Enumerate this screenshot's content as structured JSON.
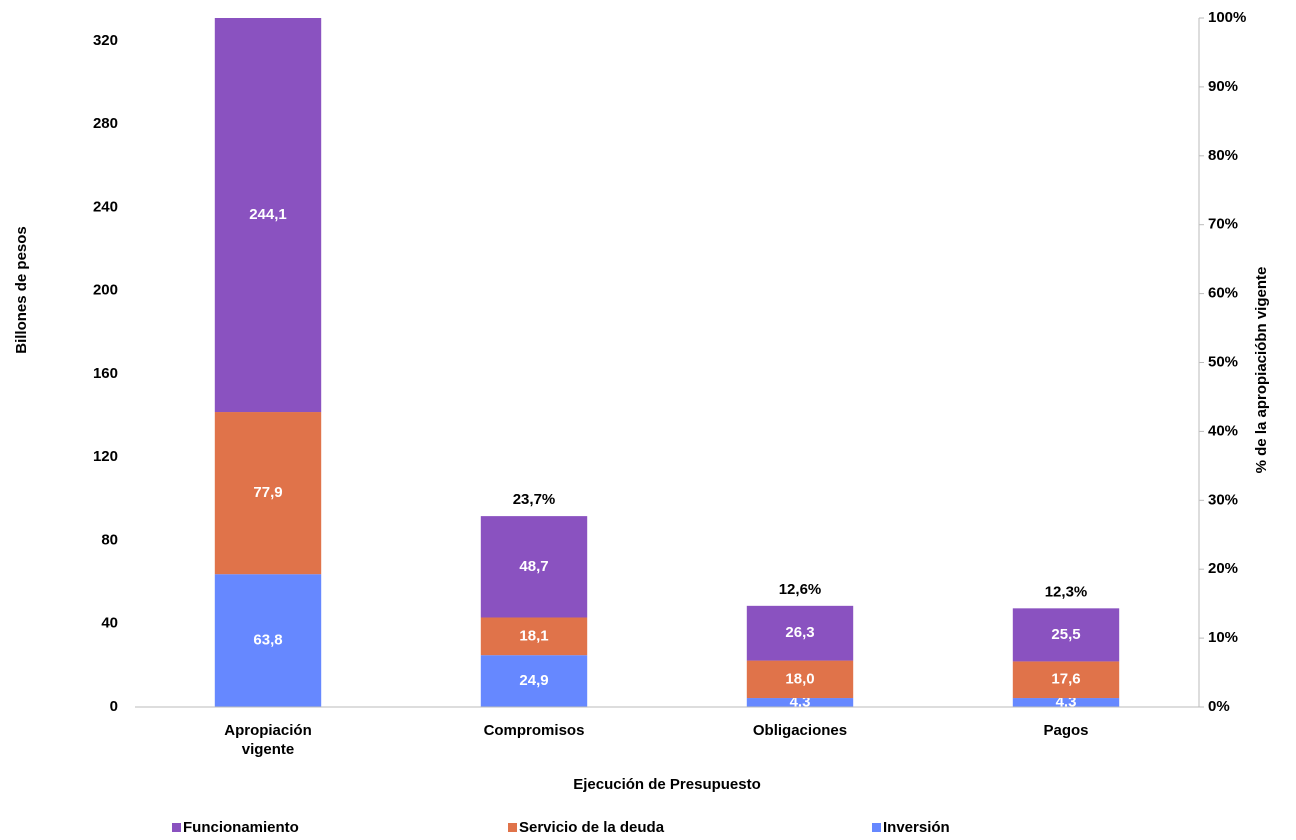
{
  "chart_data": {
    "type": "stacked-bar",
    "categories": [
      "Apropiación vigente",
      "Compromisos",
      "Obligaciones",
      "Pagos"
    ],
    "series": [
      {
        "name": "Inversión",
        "color": "#6688ff",
        "values": [
          63.8,
          24.9,
          4.3,
          4.3
        ],
        "value_labels": [
          "63,8",
          "24,9",
          "4,3",
          "4,3"
        ]
      },
      {
        "name": "Servicio de la deuda",
        "color": "#e0734a",
        "values": [
          77.9,
          18.1,
          18.0,
          17.6
        ],
        "value_labels": [
          "77,9",
          "18,1",
          "18,0",
          "17,6"
        ]
      },
      {
        "name": "Funcionamiento",
        "color": "#8a52c0",
        "values": [
          244.1,
          48.7,
          26.3,
          25.5
        ],
        "value_labels": [
          "244,1",
          "48,7",
          "26,3",
          "25,5"
        ]
      }
    ],
    "percent_of_appropriation": {
      "axis": "y2",
      "values": [
        null,
        23.7,
        12.6,
        12.3
      ],
      "value_labels": [
        null,
        "23,7%",
        "12,6%",
        "12,3%"
      ]
    },
    "ylabel": "Billones de pesos",
    "y2label": "% de la apropiacióbn vigente",
    "xlabel": "Ejecución de Presupuesto",
    "ylim": [
      0,
      331
    ],
    "yticks": [
      0,
      40,
      80,
      120,
      160,
      200,
      240,
      280,
      320
    ],
    "y2lim": [
      0,
      100
    ],
    "y2ticks": [
      {
        "value": 0,
        "label": "0%"
      },
      {
        "value": 10,
        "label": "10%"
      },
      {
        "value": 20,
        "label": "20%"
      },
      {
        "value": 30,
        "label": "30%"
      },
      {
        "value": 40,
        "label": "40%"
      },
      {
        "value": 50,
        "label": "50%"
      },
      {
        "value": 60,
        "label": "60%"
      },
      {
        "value": 70,
        "label": "70%"
      },
      {
        "value": 80,
        "label": "80%"
      },
      {
        "value": 90,
        "label": "90%"
      },
      {
        "value": 100,
        "label": "100%"
      }
    ],
    "legend": "bottom"
  }
}
